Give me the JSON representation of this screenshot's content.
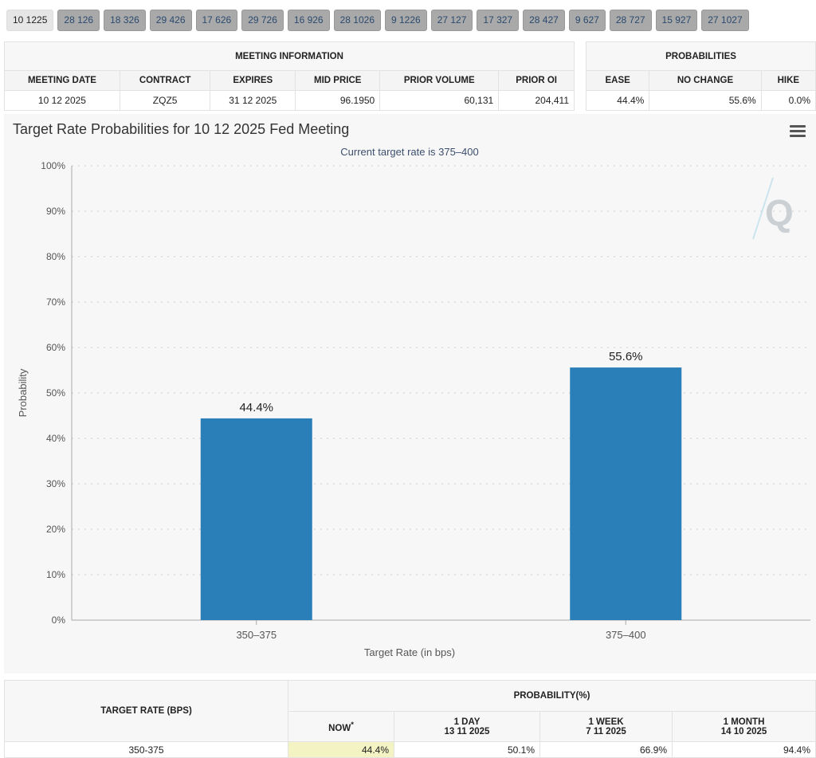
{
  "tabs": [
    "10 1225",
    "28 126",
    "18 326",
    "29 426",
    "17 626",
    "29 726",
    "16 926",
    "28 1026",
    "9 1226",
    "27 127",
    "17 327",
    "28 427",
    "9 627",
    "28 727",
    "15 927",
    "27 1027"
  ],
  "meeting_info": {
    "title": "MEETING INFORMATION",
    "headers": [
      "MEETING DATE",
      "CONTRACT",
      "EXPIRES",
      "MID PRICE",
      "PRIOR VOLUME",
      "PRIOR OI"
    ],
    "row": [
      "10 12 2025",
      "ZQZ5",
      "31 12 2025",
      "96.1950",
      "60,131",
      "204,411"
    ]
  },
  "probabilities": {
    "title": "PROBABILITIES",
    "headers": [
      "EASE",
      "NO CHANGE",
      "HIKE"
    ],
    "row": [
      "44.4%",
      "55.6%",
      "0.0%"
    ]
  },
  "chart_data": {
    "type": "bar",
    "title": "Target Rate Probabilities for 10 12 2025 Fed Meeting",
    "subtitle": "Current target rate is 375–400",
    "xlabel": "Target Rate (in bps)",
    "ylabel": "Probability",
    "categories": [
      "350–375",
      "375–400"
    ],
    "values": [
      44.4,
      55.6
    ],
    "data_labels": [
      "44.4%",
      "55.6%"
    ],
    "ylim": [
      0,
      100
    ],
    "yticks": [
      "0%",
      "10%",
      "20%",
      "30%",
      "40%",
      "50%",
      "60%",
      "70%",
      "80%",
      "90%",
      "100%"
    ],
    "grid": true,
    "bar_color": "#2b7fb8",
    "menu_icon": "hamburger-menu-icon"
  },
  "bottom_table": {
    "target_rate_header": "TARGET RATE (BPS)",
    "probability_header": "PROBABILITY(%)",
    "columns": [
      {
        "label": "NOW",
        "sup": "*",
        "date": ""
      },
      {
        "label": "1 DAY",
        "date": "13 11 2025"
      },
      {
        "label": "1 WEEK",
        "date": "7 11 2025"
      },
      {
        "label": "1 MONTH",
        "date": "14 10 2025"
      }
    ],
    "rows": [
      {
        "rate": "350-375",
        "values": [
          "44.4%",
          "50.1%",
          "66.9%",
          "94.4%"
        ]
      }
    ]
  }
}
